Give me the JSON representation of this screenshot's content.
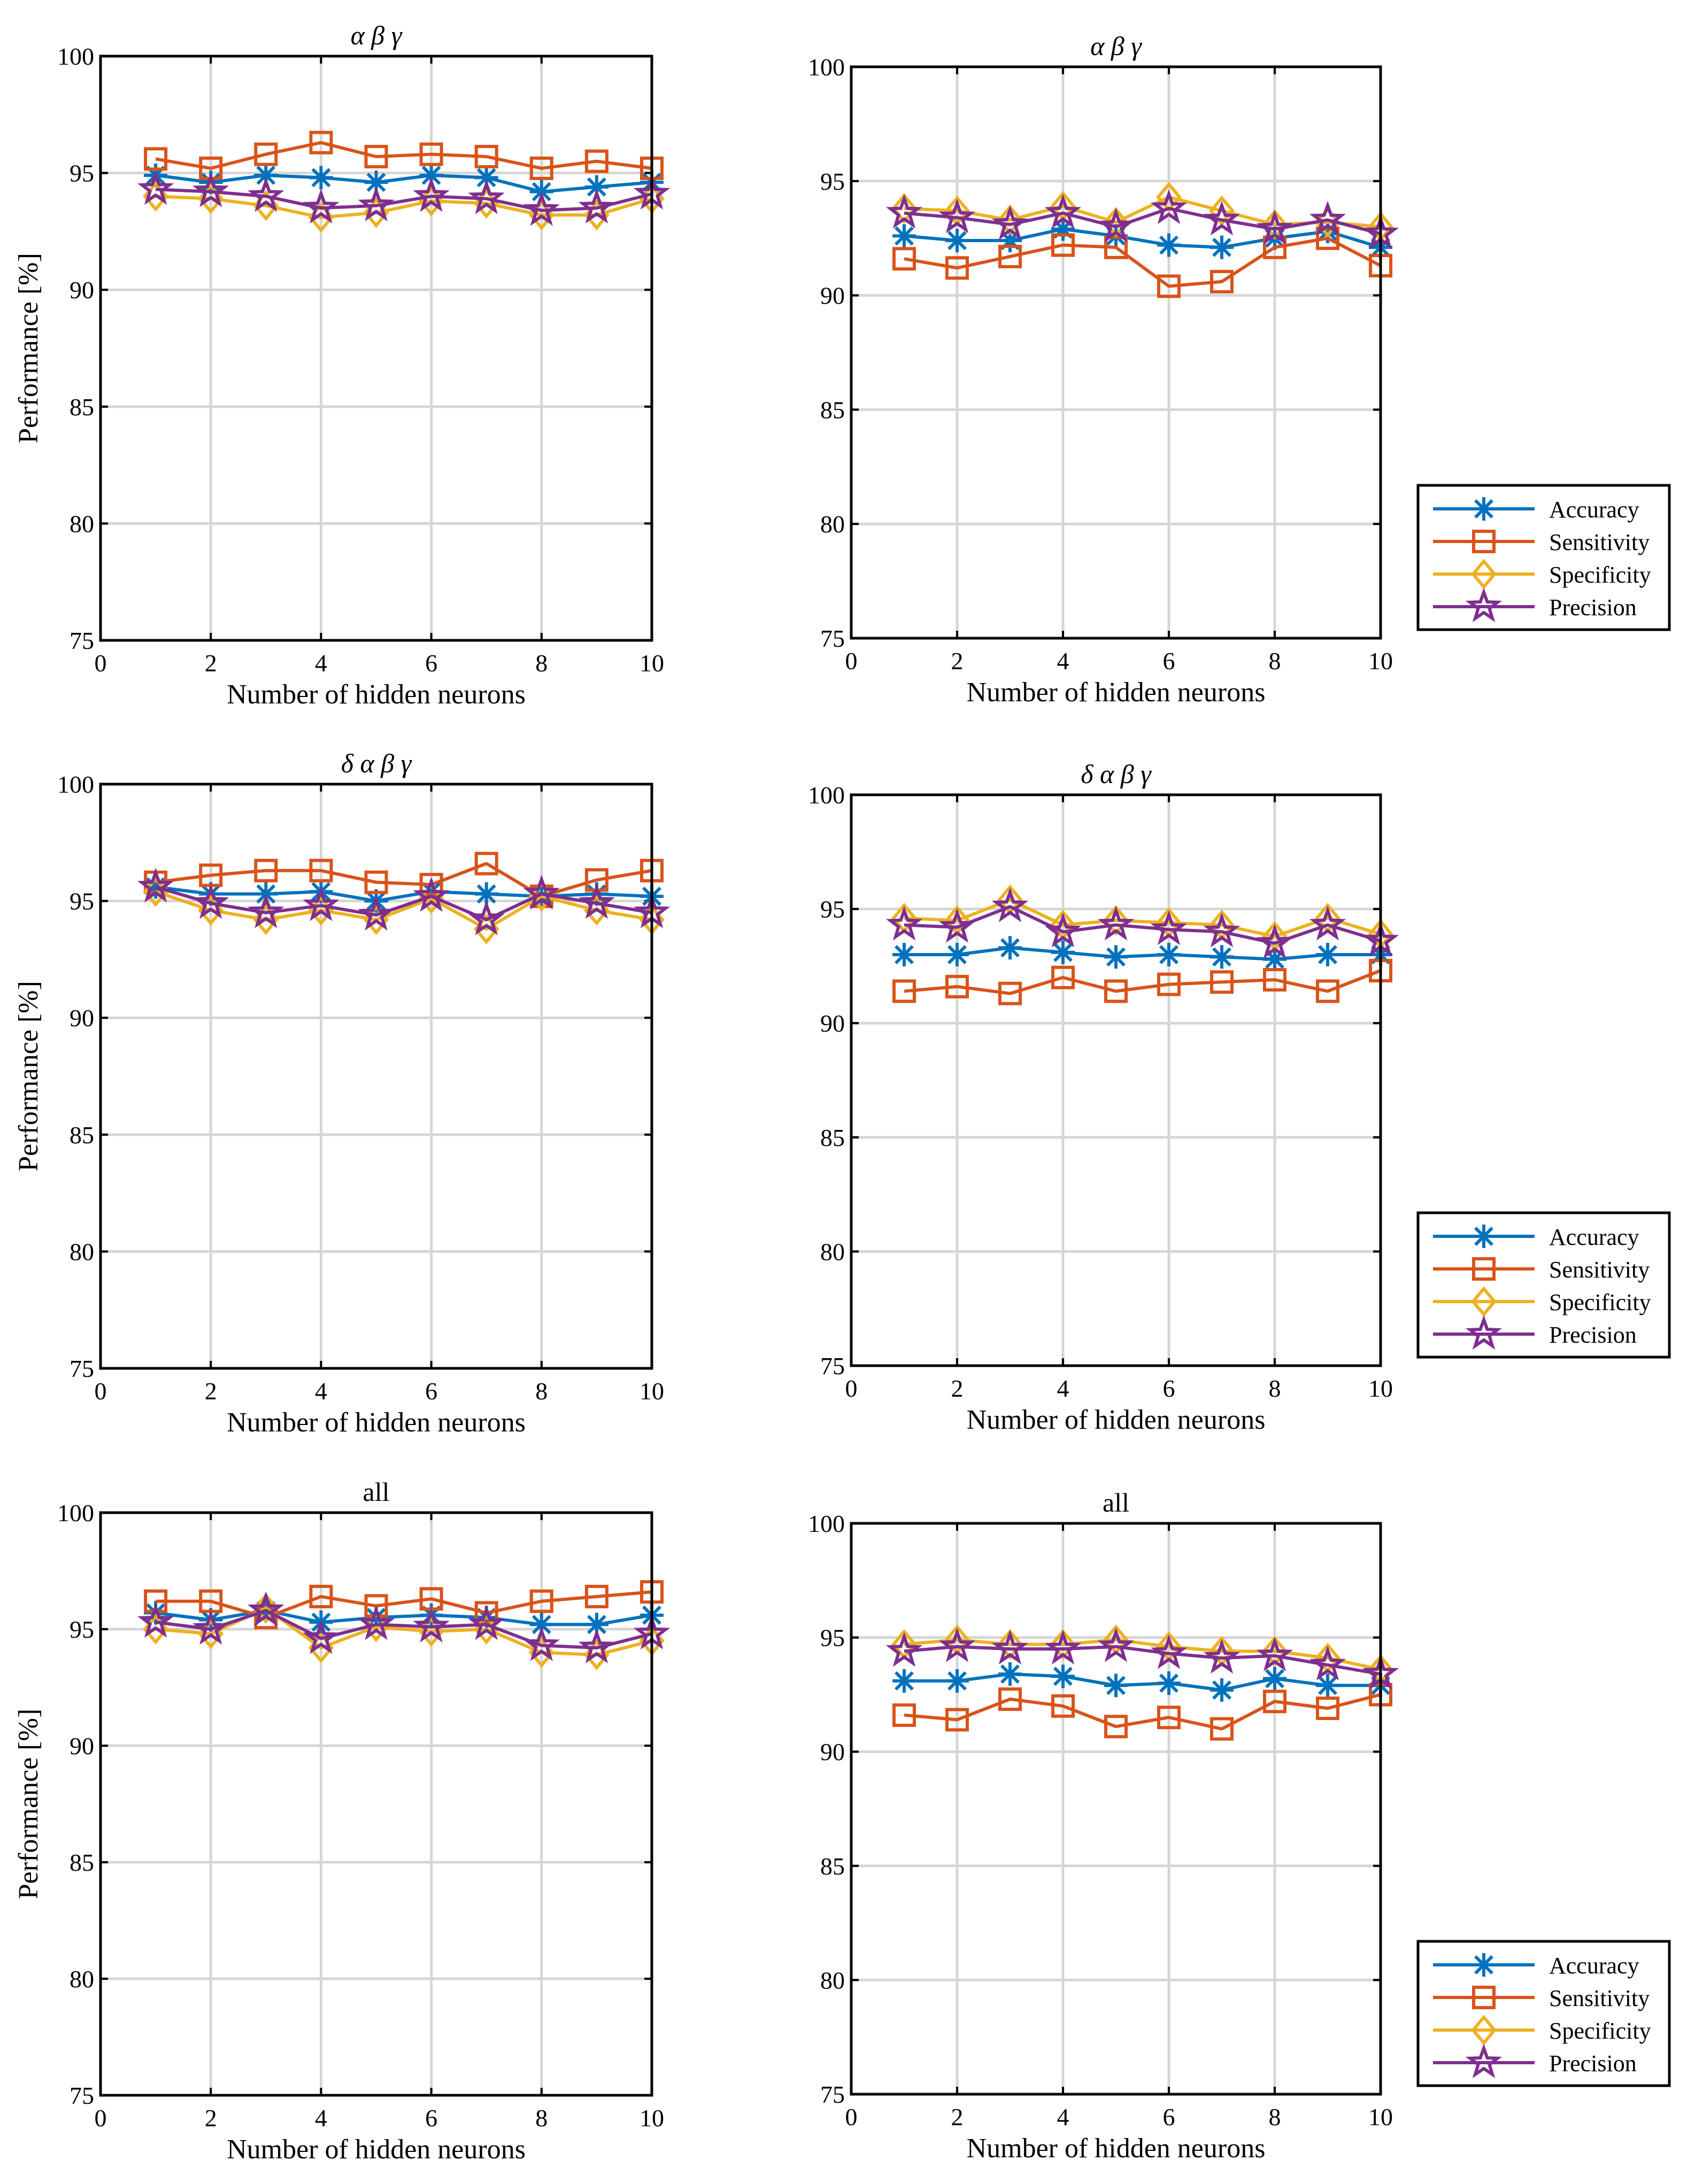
{
  "chart_data": [
    {
      "type": "line",
      "title": "α β γ",
      "xlabel": "Number of hidden neurons",
      "ylabel": "Performance [%]",
      "xlim": [
        0,
        10
      ],
      "ylim": [
        75,
        100
      ],
      "xticks": [
        0,
        2,
        4,
        6,
        8,
        10
      ],
      "yticks": [
        75,
        80,
        85,
        90,
        95,
        100
      ],
      "grid": true,
      "legend": null,
      "x": [
        1,
        2,
        3,
        4,
        5,
        6,
        7,
        8,
        9,
        10
      ],
      "series": [
        {
          "name": "Accuracy",
          "values": [
            94.9,
            94.6,
            94.9,
            94.8,
            94.6,
            94.9,
            94.8,
            94.2,
            94.4,
            94.6
          ]
        },
        {
          "name": "Sensitivity",
          "values": [
            95.6,
            95.2,
            95.8,
            96.3,
            95.7,
            95.8,
            95.7,
            95.2,
            95.5,
            95.2
          ]
        },
        {
          "name": "Specificity",
          "values": [
            94.0,
            93.9,
            93.6,
            93.1,
            93.3,
            93.8,
            93.7,
            93.2,
            93.2,
            93.9
          ]
        },
        {
          "name": "Precision",
          "values": [
            94.3,
            94.2,
            94.0,
            93.5,
            93.6,
            94.0,
            93.9,
            93.4,
            93.5,
            94.1
          ]
        }
      ]
    },
    {
      "type": "line",
      "title": "α β γ",
      "xlabel": "Number of hidden neurons",
      "ylabel": "",
      "xlim": [
        0,
        10
      ],
      "ylim": [
        75,
        100
      ],
      "xticks": [
        0,
        2,
        4,
        6,
        8,
        10
      ],
      "yticks": [
        75,
        80,
        85,
        90,
        95,
        100
      ],
      "grid": true,
      "legend": "outside-right",
      "x": [
        1,
        2,
        3,
        4,
        5,
        6,
        7,
        8,
        9,
        10
      ],
      "series": [
        {
          "name": "Accuracy",
          "values": [
            92.6,
            92.4,
            92.4,
            92.9,
            92.6,
            92.2,
            92.1,
            92.5,
            92.8,
            92.1
          ]
        },
        {
          "name": "Sensitivity",
          "values": [
            91.6,
            91.2,
            91.7,
            92.2,
            92.1,
            90.4,
            90.6,
            92.1,
            92.5,
            91.3
          ]
        },
        {
          "name": "Specificity",
          "values": [
            93.8,
            93.7,
            93.3,
            93.9,
            93.2,
            94.3,
            93.7,
            93.1,
            93.2,
            93.0
          ]
        },
        {
          "name": "Precision",
          "values": [
            93.6,
            93.4,
            93.1,
            93.6,
            93.0,
            93.8,
            93.3,
            92.9,
            93.3,
            92.7
          ]
        }
      ]
    },
    {
      "type": "line",
      "title": "δ α β γ",
      "xlabel": "Number of hidden neurons",
      "ylabel": "Performance [%]",
      "xlim": [
        0,
        10
      ],
      "ylim": [
        75,
        100
      ],
      "xticks": [
        0,
        2,
        4,
        6,
        8,
        10
      ],
      "yticks": [
        75,
        80,
        85,
        90,
        95,
        100
      ],
      "grid": true,
      "legend": null,
      "x": [
        1,
        2,
        3,
        4,
        5,
        6,
        7,
        8,
        9,
        10
      ],
      "series": [
        {
          "name": "Accuracy",
          "values": [
            95.6,
            95.3,
            95.3,
            95.4,
            95.0,
            95.4,
            95.3,
            95.2,
            95.3,
            95.2
          ]
        },
        {
          "name": "Sensitivity",
          "values": [
            95.8,
            96.1,
            96.3,
            96.3,
            95.8,
            95.7,
            96.6,
            95.2,
            95.9,
            96.3
          ]
        },
        {
          "name": "Specificity",
          "values": [
            95.4,
            94.6,
            94.2,
            94.6,
            94.2,
            95.1,
            93.8,
            95.2,
            94.6,
            94.2
          ]
        },
        {
          "name": "Precision",
          "values": [
            95.6,
            94.9,
            94.5,
            94.8,
            94.4,
            95.2,
            94.2,
            95.3,
            94.9,
            94.5
          ]
        }
      ]
    },
    {
      "type": "line",
      "title": "δ α β γ",
      "xlabel": "Number of hidden neurons",
      "ylabel": "",
      "xlim": [
        0,
        10
      ],
      "ylim": [
        75,
        100
      ],
      "xticks": [
        0,
        2,
        4,
        6,
        8,
        10
      ],
      "yticks": [
        75,
        80,
        85,
        90,
        95,
        100
      ],
      "grid": true,
      "legend": "outside-right",
      "x": [
        1,
        2,
        3,
        4,
        5,
        6,
        7,
        8,
        9,
        10
      ],
      "series": [
        {
          "name": "Accuracy",
          "values": [
            93.0,
            93.0,
            93.3,
            93.1,
            92.9,
            93.0,
            92.9,
            92.8,
            93.0,
            93.0
          ]
        },
        {
          "name": "Sensitivity",
          "values": [
            91.4,
            91.6,
            91.3,
            92.0,
            91.4,
            91.7,
            91.8,
            91.9,
            91.4,
            92.3
          ]
        },
        {
          "name": "Specificity",
          "values": [
            94.6,
            94.5,
            95.4,
            94.3,
            94.5,
            94.4,
            94.3,
            93.8,
            94.6,
            93.9
          ]
        },
        {
          "name": "Precision",
          "values": [
            94.3,
            94.2,
            95.1,
            94.0,
            94.3,
            94.1,
            94.0,
            93.5,
            94.3,
            93.6
          ]
        }
      ]
    },
    {
      "type": "line",
      "title": "all",
      "xlabel": "Number of hidden neurons",
      "ylabel": "Performance [%]",
      "xlim": [
        0,
        10
      ],
      "ylim": [
        75,
        100
      ],
      "xticks": [
        0,
        2,
        4,
        6,
        8,
        10
      ],
      "yticks": [
        75,
        80,
        85,
        90,
        95,
        100
      ],
      "grid": true,
      "legend": null,
      "x": [
        1,
        2,
        3,
        4,
        5,
        6,
        7,
        8,
        9,
        10
      ],
      "series": [
        {
          "name": "Accuracy",
          "values": [
            95.7,
            95.4,
            95.8,
            95.3,
            95.5,
            95.6,
            95.5,
            95.2,
            95.2,
            95.6
          ]
        },
        {
          "name": "Sensitivity",
          "values": [
            96.2,
            96.2,
            95.5,
            96.4,
            96.0,
            96.3,
            95.7,
            96.2,
            96.4,
            96.6
          ]
        },
        {
          "name": "Specificity",
          "values": [
            95.0,
            94.8,
            95.9,
            94.2,
            95.1,
            94.9,
            95.0,
            94.0,
            93.9,
            94.5
          ]
        },
        {
          "name": "Precision",
          "values": [
            95.3,
            95.0,
            95.8,
            94.6,
            95.2,
            95.1,
            95.2,
            94.3,
            94.2,
            94.8
          ]
        }
      ]
    },
    {
      "type": "line",
      "title": "all",
      "xlabel": "Number of hidden neurons",
      "ylabel": "",
      "xlim": [
        0,
        10
      ],
      "ylim": [
        75,
        100
      ],
      "xticks": [
        0,
        2,
        4,
        6,
        8,
        10
      ],
      "yticks": [
        75,
        80,
        85,
        90,
        95,
        100
      ],
      "grid": true,
      "legend": "outside-right",
      "x": [
        1,
        2,
        3,
        4,
        5,
        6,
        7,
        8,
        9,
        10
      ],
      "series": [
        {
          "name": "Accuracy",
          "values": [
            93.1,
            93.1,
            93.4,
            93.3,
            92.9,
            93.0,
            92.7,
            93.2,
            92.9,
            92.9
          ]
        },
        {
          "name": "Sensitivity",
          "values": [
            91.6,
            91.4,
            92.3,
            92.0,
            91.1,
            91.5,
            91.0,
            92.2,
            91.9,
            92.5
          ]
        },
        {
          "name": "Specificity",
          "values": [
            94.7,
            94.9,
            94.7,
            94.7,
            94.9,
            94.6,
            94.4,
            94.4,
            94.1,
            93.6
          ]
        },
        {
          "name": "Precision",
          "values": [
            94.4,
            94.6,
            94.5,
            94.5,
            94.6,
            94.3,
            94.1,
            94.2,
            93.8,
            93.4
          ]
        }
      ]
    }
  ],
  "colors": {
    "Accuracy": "#0072BD",
    "Sensitivity": "#D95319",
    "Specificity": "#EDB120",
    "Precision": "#7E2F8E",
    "grid": "#d6d6d6"
  },
  "markers": {
    "Accuracy": "asterisk",
    "Sensitivity": "square",
    "Specificity": "diamond",
    "Precision": "pentagram"
  }
}
